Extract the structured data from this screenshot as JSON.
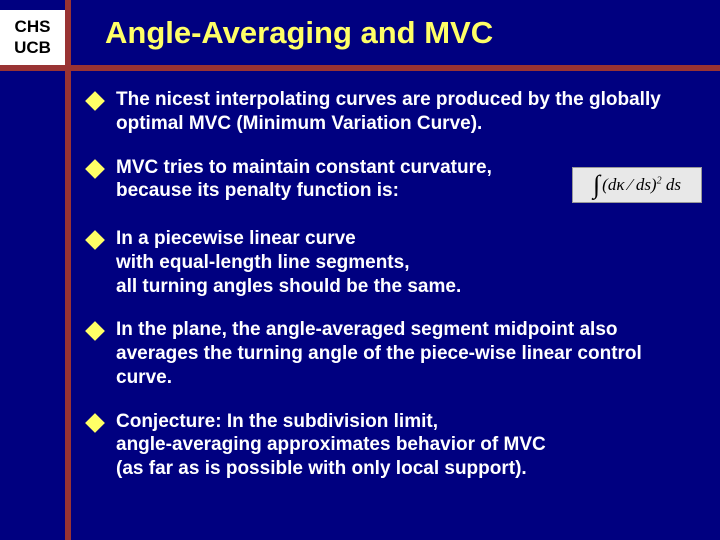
{
  "colors": {
    "background": "#000080",
    "accent_line": "#993333",
    "title_color": "#ffff66",
    "bullet_color": "#ffff66",
    "text_color": "#ffffff",
    "header_bg": "#ffffff",
    "header_text": "#000000"
  },
  "header": {
    "line1": "CHS",
    "line2": "UCB"
  },
  "title": "Angle-Averaging and MVC",
  "bullets": [
    "The nicest  interpolating curves are produced by the globally optimal MVC (Minimum Variation Curve).",
    "MVC tries to maintain constant curvature, because its penalty function is:",
    "In a piecewise linear curve\nwith equal-length line segments,\nall turning angles should be the same.",
    "In the plane, the angle-averaged segment midpoint also averages the turning angle of the piece-wise linear control curve.",
    "Conjecture:  In the subdivision limit,\nangle-averaging approximates behavior of  MVC\n(as far as is possible with only local support)."
  ],
  "formula": "∫ (dκ ⁄ ds)² ds"
}
